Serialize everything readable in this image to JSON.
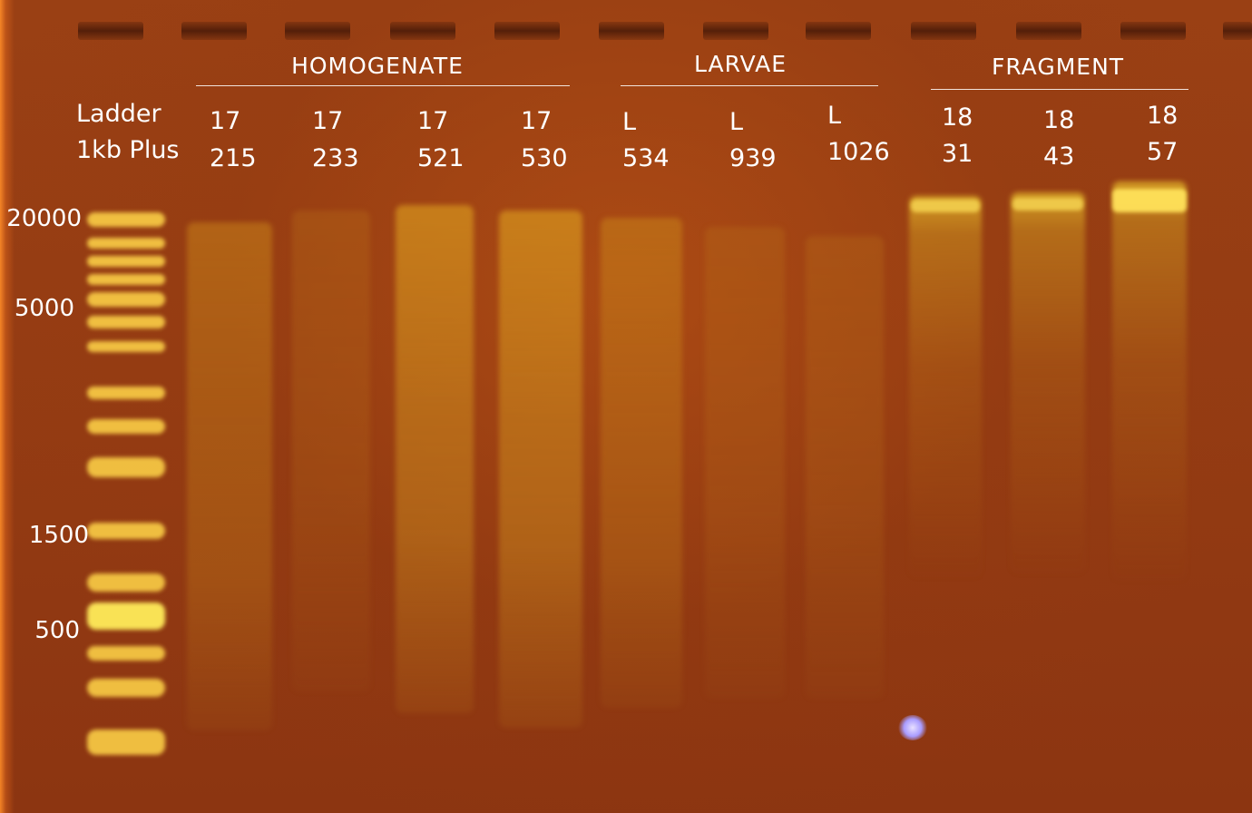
{
  "image": {
    "background_color": "#933a13",
    "lane_color": "#d9a22a",
    "label_color": "#ffffff",
    "marker_glyph_color": "#b4a8ff"
  },
  "ladder": {
    "name_line1": "Ladder",
    "name_line2": "1kb Plus",
    "size_markers": [
      "20000",
      "5000",
      "1500",
      "500"
    ]
  },
  "groups": [
    {
      "title": "HOMOGENATE",
      "lanes": [
        {
          "line1": "17",
          "line2": "215"
        },
        {
          "line1": "17",
          "line2": "233"
        },
        {
          "line1": "17",
          "line2": "521"
        },
        {
          "line1": "17",
          "line2": "530"
        }
      ]
    },
    {
      "title": "LARVAE",
      "lanes": [
        {
          "line1": "L",
          "line2": "534"
        },
        {
          "line1": "L",
          "line2": "939"
        },
        {
          "line1": "L",
          "line2": "1026"
        }
      ]
    },
    {
      "title": "FRAGMENT",
      "lanes": [
        {
          "line1": "18",
          "line2": "31"
        },
        {
          "line1": "18",
          "line2": "43"
        },
        {
          "line1": "18",
          "line2": "57"
        }
      ]
    }
  ]
}
